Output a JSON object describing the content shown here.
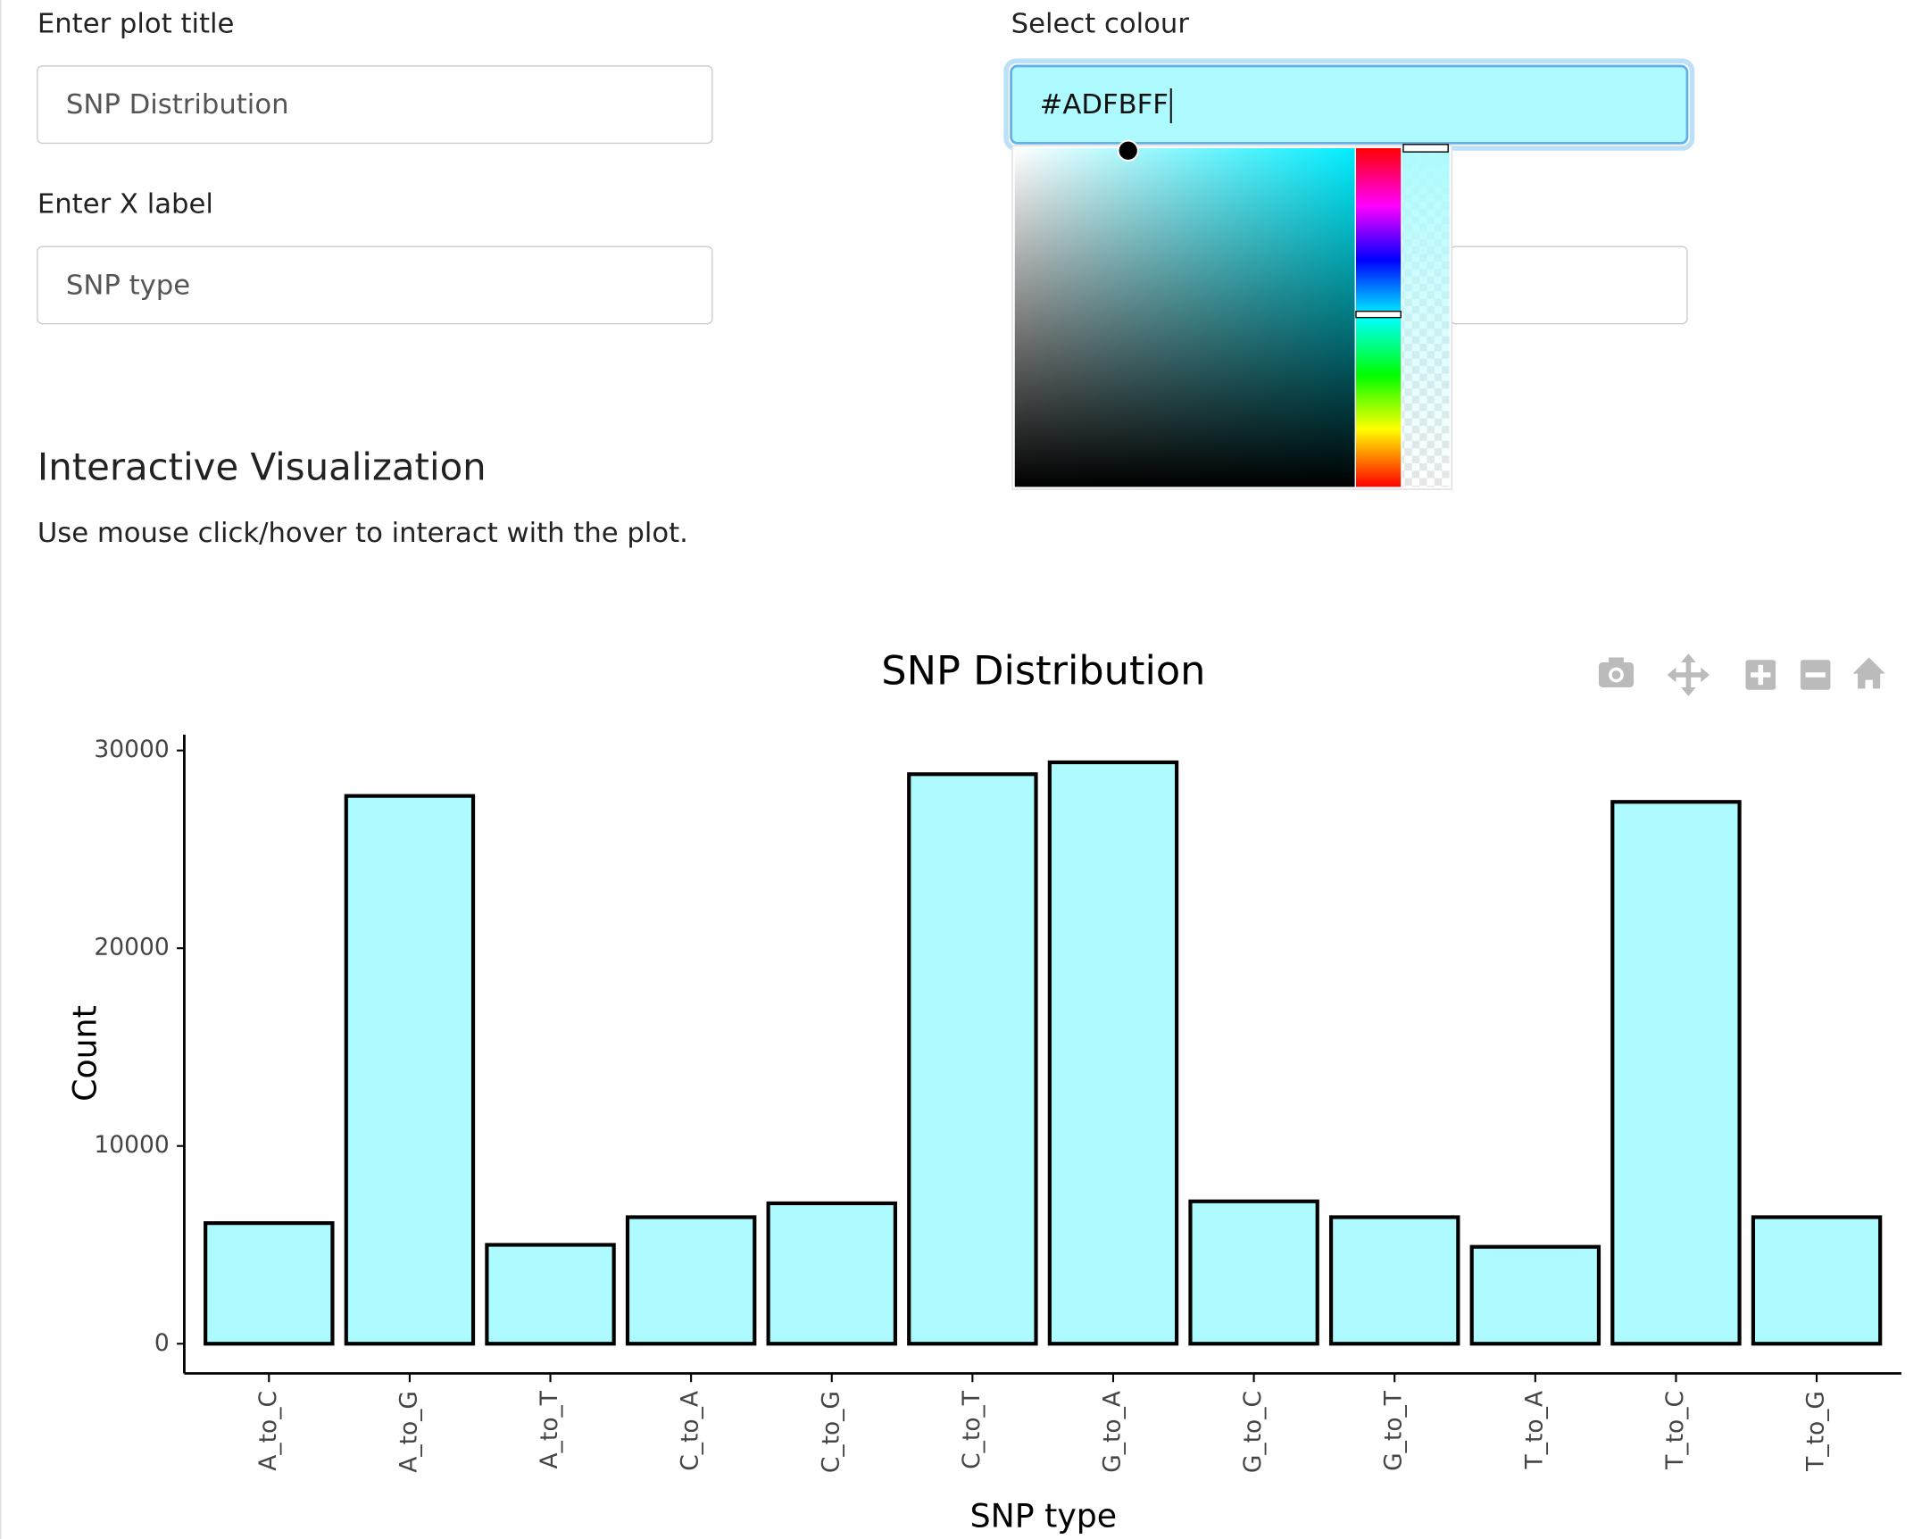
{
  "form": {
    "title_label": "Enter plot title",
    "title_value": "SNP Distribution",
    "xlabel_label": "Enter X label",
    "xlabel_value": "SNP type",
    "colour_label": "Select colour",
    "colour_value": "#ADFBFF"
  },
  "section": {
    "heading": "Interactive Visualization",
    "text": "Use mouse click/hover to interact with the plot."
  },
  "chart_data": {
    "type": "bar",
    "title": "SNP Distribution",
    "x_label": "SNP type",
    "y_label": "Count",
    "categories": [
      "A_to_C",
      "A_to_G",
      "A_to_T",
      "C_to_A",
      "C_to_G",
      "C_to_T",
      "G_to_A",
      "G_to_C",
      "G_to_T",
      "T_to_A",
      "T_to_C",
      "T_to_G"
    ],
    "values": [
      6100,
      27700,
      5000,
      6400,
      7100,
      28800,
      29400,
      7200,
      6400,
      4900,
      27400,
      6400
    ],
    "color": "#ADFBFF",
    "edge_color": "#000000",
    "ylim": [
      -1500,
      30800
    ],
    "yticks": [
      0,
      10000,
      20000,
      30000
    ]
  }
}
